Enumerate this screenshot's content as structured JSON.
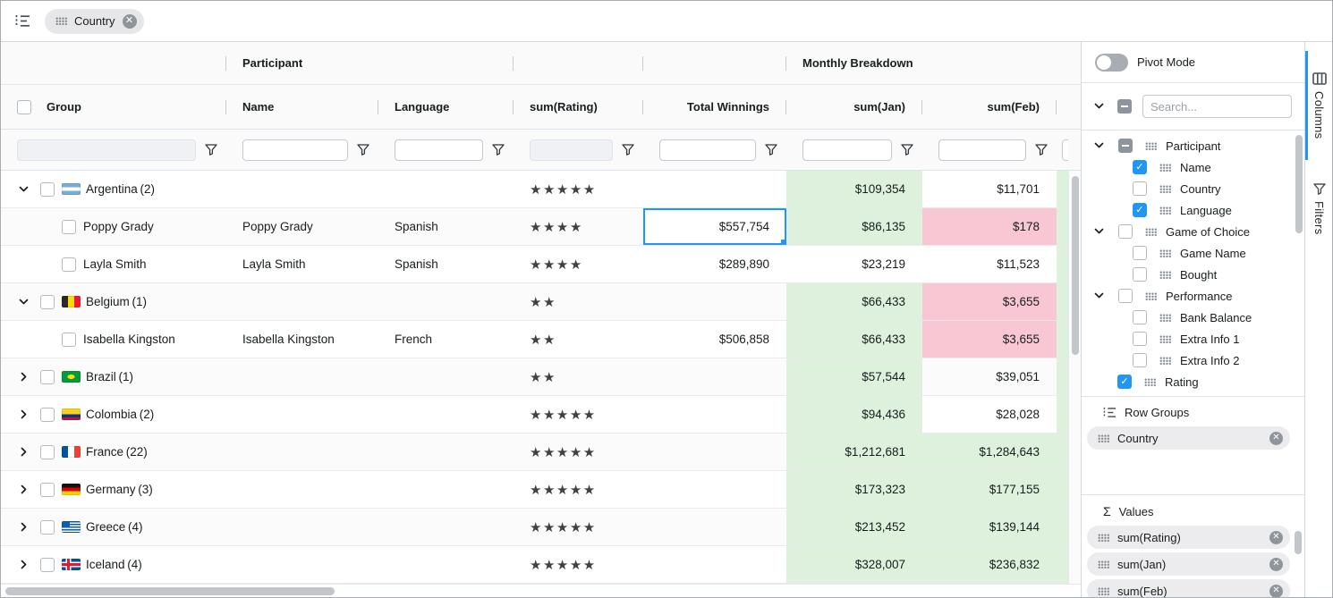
{
  "toolbar": {
    "group_chip": {
      "label": "Country"
    }
  },
  "grid": {
    "group_headers": {
      "participant": "Participant",
      "monthly": "Monthly Breakdown"
    },
    "columns": {
      "group": "Group",
      "name": "Name",
      "language": "Language",
      "rating": "sum(Rating)",
      "winnings": "Total Winnings",
      "jan": "sum(Jan)",
      "feb": "sum(Feb)"
    },
    "rows": [
      {
        "kind": "group",
        "expanded": true,
        "flag": "argentina",
        "label": "Argentina",
        "count": "(2)",
        "stars": 5,
        "name": "",
        "language": "",
        "winnings": "",
        "jan": "$109,354",
        "jan_bg": "green",
        "feb": "$11,701",
        "feb_bg": "",
        "extra_bg": "green"
      },
      {
        "kind": "leaf",
        "flag": null,
        "label": "Poppy Grady",
        "count": "",
        "stars": 4,
        "name": "Poppy Grady",
        "language": "Spanish",
        "winnings": "$557,754",
        "winnings_selected": true,
        "jan": "$86,135",
        "jan_bg": "green",
        "feb": "$178",
        "feb_bg": "pink",
        "extra_bg": "green"
      },
      {
        "kind": "leaf",
        "flag": null,
        "label": "Layla Smith",
        "count": "",
        "stars": 4,
        "name": "Layla Smith",
        "language": "Spanish",
        "winnings": "$289,890",
        "jan": "$23,219",
        "jan_bg": "",
        "feb": "$11,523",
        "feb_bg": "",
        "extra_bg": "green"
      },
      {
        "kind": "group",
        "expanded": true,
        "flag": "belgium",
        "label": "Belgium",
        "count": "(1)",
        "stars": 2,
        "name": "",
        "language": "",
        "winnings": "",
        "jan": "$66,433",
        "jan_bg": "green",
        "feb": "$3,655",
        "feb_bg": "pink",
        "extra_bg": "green"
      },
      {
        "kind": "leaf",
        "flag": null,
        "label": "Isabella Kingston",
        "count": "",
        "stars": 2,
        "name": "Isabella Kingston",
        "language": "French",
        "winnings": "$506,858",
        "jan": "$66,433",
        "jan_bg": "green",
        "feb": "$3,655",
        "feb_bg": "pink",
        "extra_bg": "green"
      },
      {
        "kind": "group",
        "expanded": false,
        "flag": "brazil",
        "label": "Brazil",
        "count": "(1)",
        "stars": 2,
        "name": "",
        "language": "",
        "winnings": "",
        "jan": "$57,544",
        "jan_bg": "green",
        "feb": "$39,051",
        "feb_bg": "",
        "extra_bg": "green"
      },
      {
        "kind": "group",
        "expanded": false,
        "flag": "colombia",
        "label": "Colombia",
        "count": "(2)",
        "stars": 5,
        "name": "",
        "language": "",
        "winnings": "",
        "jan": "$94,436",
        "jan_bg": "green",
        "feb": "$28,028",
        "feb_bg": "",
        "extra_bg": "green"
      },
      {
        "kind": "group",
        "expanded": false,
        "flag": "france",
        "label": "France",
        "count": "(22)",
        "stars": 5,
        "name": "",
        "language": "",
        "winnings": "",
        "jan": "$1,212,681",
        "jan_bg": "green",
        "feb": "$1,284,643",
        "feb_bg": "green",
        "extra_bg": "green"
      },
      {
        "kind": "group",
        "expanded": false,
        "flag": "germany",
        "label": "Germany",
        "count": "(3)",
        "stars": 5,
        "name": "",
        "language": "",
        "winnings": "",
        "jan": "$173,323",
        "jan_bg": "green",
        "feb": "$177,155",
        "feb_bg": "green",
        "extra_bg": "green"
      },
      {
        "kind": "group",
        "expanded": false,
        "flag": "greece",
        "label": "Greece",
        "count": "(4)",
        "stars": 5,
        "name": "",
        "language": "",
        "winnings": "",
        "jan": "$213,452",
        "jan_bg": "green",
        "feb": "$139,144",
        "feb_bg": "green",
        "extra_bg": "green"
      },
      {
        "kind": "group",
        "expanded": false,
        "flag": "iceland",
        "label": "Iceland",
        "count": "(4)",
        "stars": 5,
        "name": "",
        "language": "",
        "winnings": "",
        "jan": "$328,007",
        "jan_bg": "green",
        "feb": "$236,832",
        "feb_bg": "green",
        "extra_bg": "green"
      }
    ]
  },
  "sidebar": {
    "pivot_mode_label": "Pivot Mode",
    "pivot_mode_enabled": false,
    "search_placeholder": "Search...",
    "tree": [
      {
        "label": "Participant",
        "level": 0,
        "group": true,
        "expanded": true,
        "check": "indeterminate"
      },
      {
        "label": "Name",
        "level": 1,
        "group": false,
        "check": "checked"
      },
      {
        "label": "Country",
        "level": 1,
        "group": false,
        "check": "unchecked"
      },
      {
        "label": "Language",
        "level": 1,
        "group": false,
        "check": "checked"
      },
      {
        "label": "Game of Choice",
        "level": 0,
        "group": true,
        "expanded": true,
        "check": "unchecked"
      },
      {
        "label": "Game Name",
        "level": 1,
        "group": false,
        "check": "unchecked"
      },
      {
        "label": "Bought",
        "level": 1,
        "group": false,
        "check": "unchecked"
      },
      {
        "label": "Performance",
        "level": 0,
        "group": true,
        "expanded": true,
        "check": "unchecked"
      },
      {
        "label": "Bank Balance",
        "level": 1,
        "group": false,
        "check": "unchecked"
      },
      {
        "label": "Extra Info 1",
        "level": 1,
        "group": false,
        "check": "unchecked"
      },
      {
        "label": "Extra Info 2",
        "level": 1,
        "group": false,
        "check": "unchecked"
      },
      {
        "label": "Rating",
        "level": 0,
        "group": false,
        "check": "checked"
      }
    ],
    "row_groups": {
      "title": "Row Groups",
      "items": [
        "Country"
      ]
    },
    "values": {
      "title": "Values",
      "items": [
        "sum(Rating)",
        "sum(Jan)",
        "sum(Feb)"
      ]
    },
    "tabs": [
      {
        "label": "Columns",
        "active": true
      },
      {
        "label": "Filters",
        "active": false
      }
    ]
  }
}
